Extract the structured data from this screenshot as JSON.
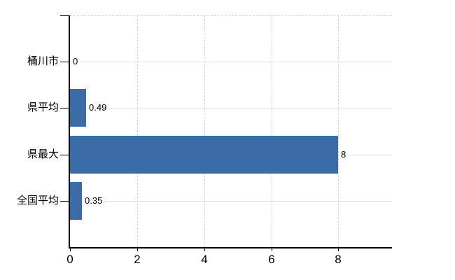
{
  "chart_data": {
    "type": "bar",
    "orientation": "horizontal",
    "title": "",
    "xlabel": "",
    "ylabel": "",
    "categories": [
      "桶川市",
      "県平均",
      "県最大",
      "全国平均"
    ],
    "values": [
      0,
      0.49,
      8,
      0.35
    ],
    "value_labels": [
      "0",
      "0.49",
      "8",
      "0.35"
    ],
    "xlim": [
      0,
      9.6
    ],
    "xticks": [
      0,
      2,
      4,
      6,
      8
    ],
    "xtick_labels": [
      "0",
      "2",
      "4",
      "6",
      "8"
    ],
    "grid": "on",
    "legend": "none",
    "colors": {
      "bar": "#3c6ca8",
      "axis": "#000000",
      "row_gridline": "#dce2da",
      "tick_gridline": "#d6d2d6",
      "text": "#000000",
      "background": "#ffffff"
    }
  }
}
